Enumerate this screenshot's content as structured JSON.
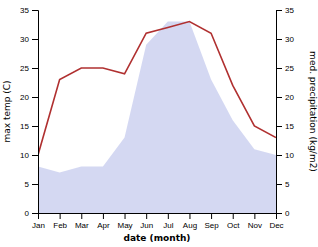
{
  "chart_data": {
    "type": "line",
    "xlabel": "date (month)",
    "ylabel": "max temp (C)",
    "y2label": "med. precipitation (kg/m2)",
    "categories": [
      "Jan",
      "Feb",
      "Mar",
      "Apr",
      "May",
      "Jun",
      "Jul",
      "Aug",
      "Sep",
      "Oct",
      "Nov",
      "Dec"
    ],
    "series": [
      {
        "type": "area",
        "axis": "y2",
        "color": "#b0b8e8",
        "values": [
          8,
          7,
          8,
          8,
          13,
          29,
          33,
          33,
          23,
          16,
          11,
          10
        ]
      },
      {
        "type": "line",
        "color": "#b03030",
        "values": [
          10,
          23,
          25,
          25,
          24,
          31,
          32,
          33,
          31,
          22,
          15,
          13
        ]
      }
    ],
    "ylim": [
      0,
      35
    ],
    "yticks": [
      0,
      5,
      10,
      15,
      20,
      25,
      30,
      35
    ],
    "y2lim": [
      0,
      35
    ],
    "y2ticks": [
      0,
      5,
      10,
      15,
      20,
      25,
      30,
      35
    ],
    "grid": false
  }
}
